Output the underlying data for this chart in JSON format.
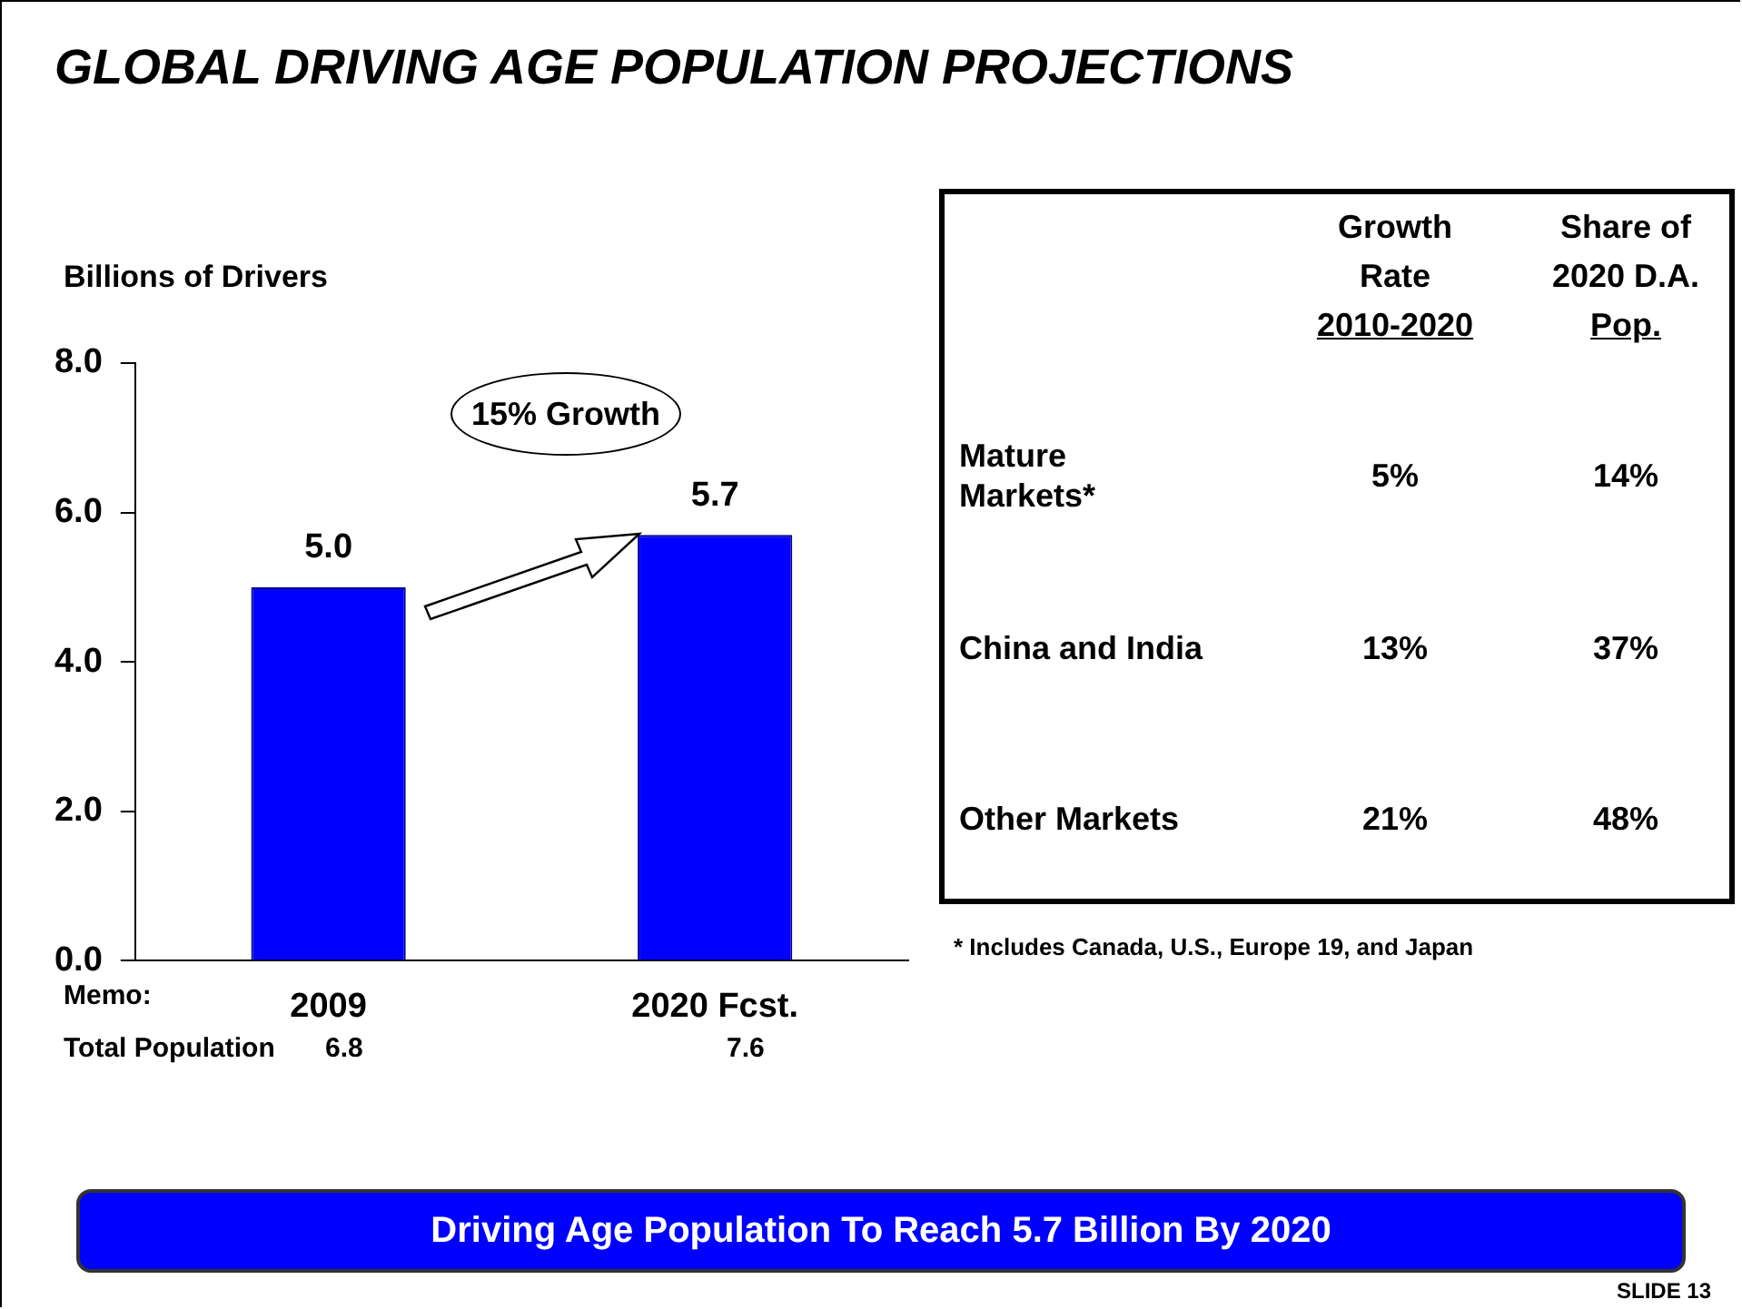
{
  "chart_data": [
    {
      "type": "bar",
      "title": "GLOBAL DRIVING AGE POPULATION PROJECTIONS",
      "ylabel": "Billions of Drivers",
      "categories": [
        "2009",
        "2020 Fcst."
      ],
      "values": [
        5.0,
        5.7
      ],
      "color": "#0000ff",
      "value_labels": [
        "5.0",
        "5.7"
      ],
      "ylim": [
        0,
        8
      ],
      "yticks": [
        {
          "value": 0,
          "label": "0.0"
        },
        {
          "value": 2,
          "label": "2.0"
        },
        {
          "value": 4,
          "label": "4.0"
        },
        {
          "value": 6,
          "label": "6.0"
        },
        {
          "value": 8,
          "label": "8.0"
        }
      ],
      "grid": false,
      "legend": false,
      "annotations": [
        "15% Growth",
        "Memo:",
        "Total Population",
        "6.8",
        "7.6",
        "Driving Age Population To Reach 5.7 Billion By 2020",
        "SLIDE 13"
      ]
    },
    {
      "type": "other",
      "annotations": [
        "Growth\nRate\n2010-2020",
        "Share of\n2020 D.A.\nPop.",
        "Mature\nMarkets*",
        "5%",
        "14%",
        "China and India",
        "13%",
        "37%",
        "Other Markets",
        "21%",
        "48%",
        "* Includes Canada, U.S., Europe 19, and Japan"
      ]
    }
  ]
}
